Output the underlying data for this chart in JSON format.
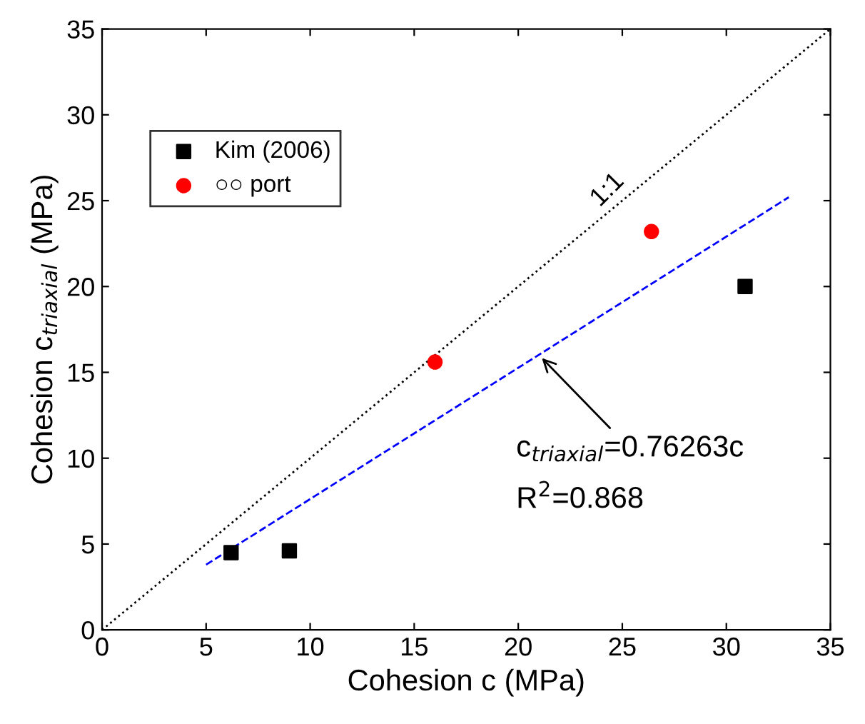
{
  "chart_data": {
    "type": "scatter",
    "xlabel": "Cohesion c (MPa)",
    "ylabel": "Cohesion c$_{triaxial}$ (MPa)",
    "xlim": [
      0,
      35
    ],
    "ylim": [
      0,
      35
    ],
    "xticks": [
      0,
      5,
      10,
      15,
      20,
      25,
      30,
      35
    ],
    "yticks": [
      0,
      5,
      10,
      15,
      20,
      25,
      30,
      35
    ],
    "grid": false,
    "legend": "top left",
    "series": [
      {
        "name": "Kim (2006)",
        "marker": "square",
        "color": "#000000",
        "x": [
          6.2,
          9.0,
          30.9
        ],
        "values": [
          4.5,
          4.6,
          20.0
        ]
      },
      {
        "name": "○○ port",
        "marker": "circle",
        "color": "#ff0000",
        "x": [
          16.0,
          26.4
        ],
        "values": [
          15.6,
          23.2
        ]
      },
      {
        "type": "line",
        "marker": "none",
        "line_style": "dotted",
        "color": "#000000",
        "x": [
          0,
          35
        ],
        "values": [
          0,
          35
        ]
      },
      {
        "type": "line",
        "marker": "none",
        "line_style": "dashed",
        "color": "#0000ff",
        "x": [
          5,
          33
        ],
        "values": [
          3.8,
          25.2
        ]
      }
    ],
    "annotations": [
      "1:1",
      {
        "text": "c$_{triaxial}$=0.76263c",
        "x": 21,
        "y": 16
      },
      "R$^{2}$=0.868"
    ]
  }
}
